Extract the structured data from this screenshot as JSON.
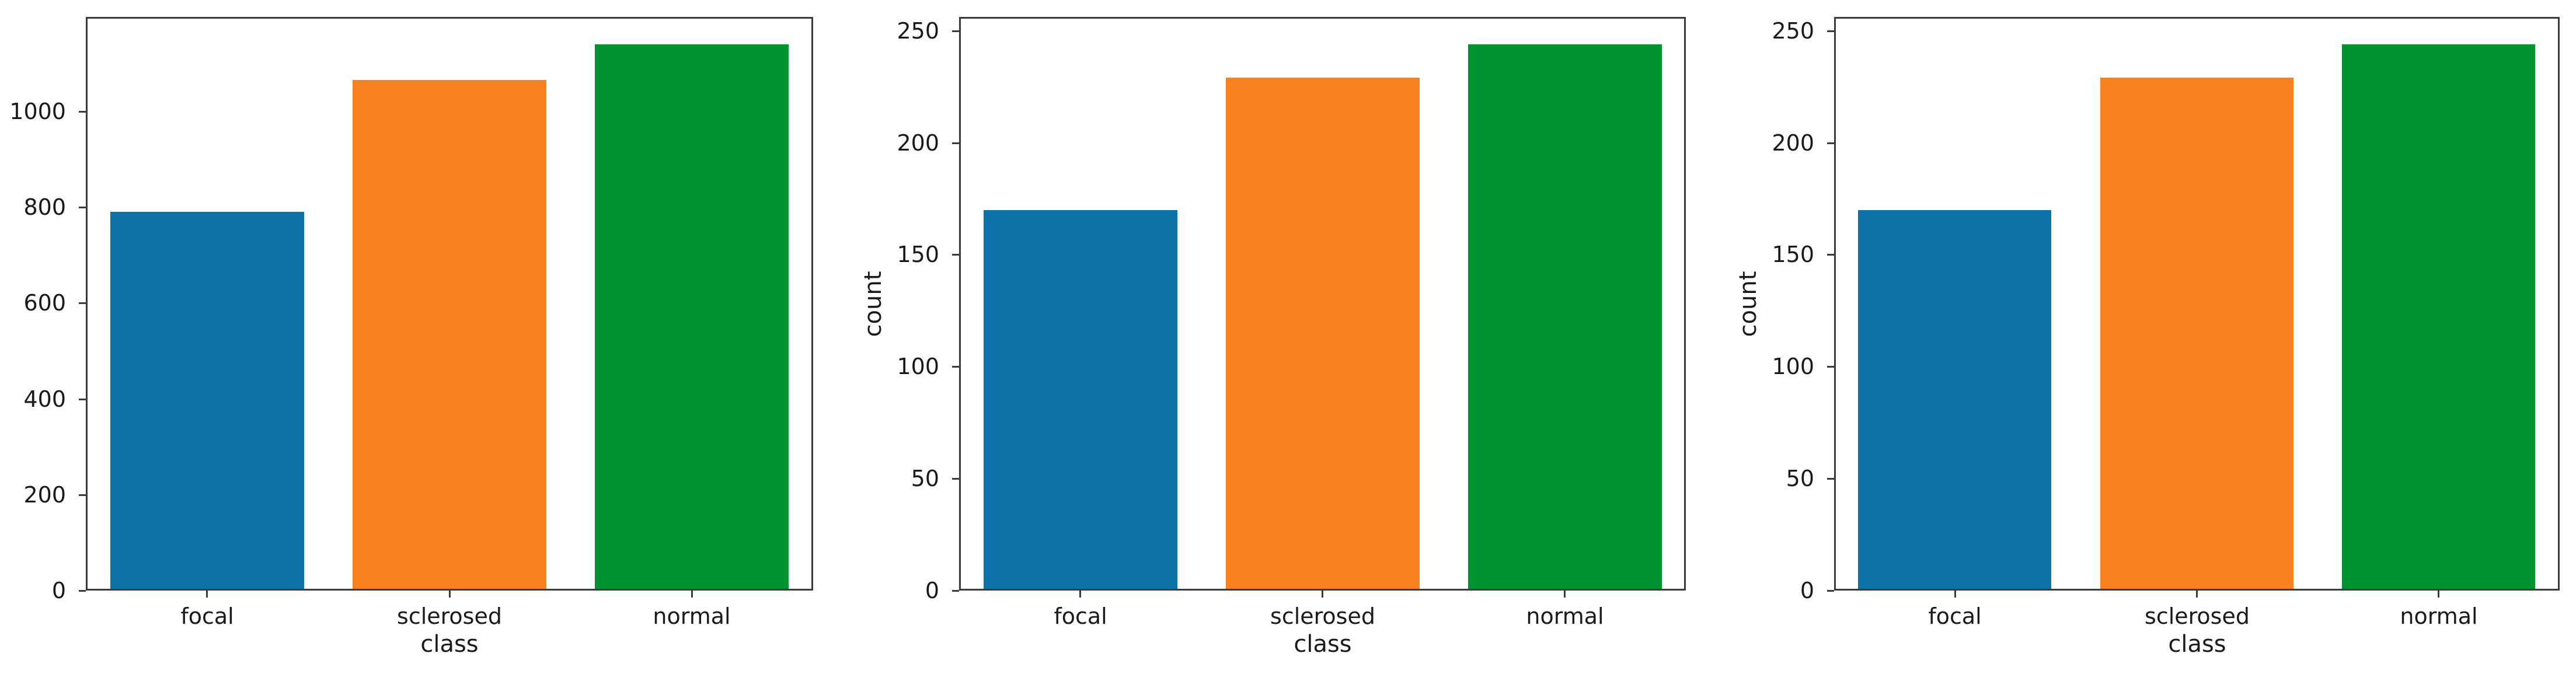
{
  "figure": {
    "background": "#ffffff",
    "axis_color": "#3a3a3a",
    "text_color": "#1a1a1a"
  },
  "chart_data": [
    {
      "type": "bar",
      "title": "",
      "xlabel": "class",
      "ylabel": "",
      "categories": [
        "focal",
        "sclerosed",
        "normal"
      ],
      "values": [
        790,
        1065,
        1140
      ],
      "bar_colors": [
        "#0d72a8",
        "#fa821e",
        "#009430"
      ],
      "yticks": [
        0,
        200,
        400,
        600,
        800,
        1000
      ],
      "ylim": [
        0,
        1197
      ],
      "bar_width_fraction": 0.8,
      "grid": false,
      "legend_position": "none"
    },
    {
      "type": "bar",
      "title": "",
      "xlabel": "class",
      "ylabel": "count",
      "categories": [
        "focal",
        "sclerosed",
        "normal"
      ],
      "values": [
        170,
        229,
        244
      ],
      "bar_colors": [
        "#0d72a8",
        "#fa821e",
        "#009430"
      ],
      "yticks": [
        0,
        50,
        100,
        150,
        200,
        250
      ],
      "ylim": [
        0,
        256.2
      ],
      "bar_width_fraction": 0.8,
      "grid": false,
      "legend_position": "none"
    },
    {
      "type": "bar",
      "title": "",
      "xlabel": "class",
      "ylabel": "count",
      "categories": [
        "focal",
        "sclerosed",
        "normal"
      ],
      "values": [
        170,
        229,
        244
      ],
      "bar_colors": [
        "#0d72a8",
        "#fa821e",
        "#009430"
      ],
      "yticks": [
        0,
        50,
        100,
        150,
        200,
        250
      ],
      "ylim": [
        0,
        256.2
      ],
      "bar_width_fraction": 0.8,
      "grid": false,
      "legend_position": "none"
    }
  ]
}
